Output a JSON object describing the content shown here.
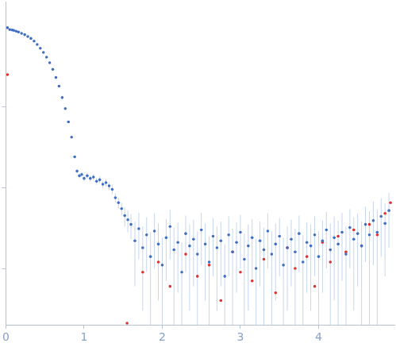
{
  "chart_data": {
    "type": "scatter",
    "xlim": [
      0,
      4.97
    ],
    "xticks": [
      0,
      1,
      2,
      3,
      4
    ],
    "ylim": [
      0.0002,
      2
    ],
    "yticks": [
      0.001,
      0.01,
      0.1
    ],
    "log": "y",
    "grid": false,
    "tick_labels": "x",
    "series": [
      {
        "color": "#3f6fc4",
        "marker": "circle",
        "x": [
          0.02,
          0.05,
          0.08,
          0.1,
          0.13,
          0.16,
          0.2,
          0.24,
          0.28,
          0.32,
          0.36,
          0.4,
          0.44,
          0.48,
          0.52,
          0.56,
          0.6,
          0.64,
          0.68,
          0.72,
          0.76,
          0.8,
          0.84,
          0.88,
          0.91,
          0.94,
          0.97,
          1.0,
          1.04,
          1.08,
          1.12,
          1.16,
          1.2,
          1.24,
          1.28,
          1.32,
          1.36,
          1.4,
          1.44,
          1.48,
          1.52,
          1.56,
          1.6,
          1.65,
          1.7,
          1.75,
          1.8,
          1.85,
          1.9,
          1.95,
          2.0,
          2.05,
          2.1,
          2.15,
          2.2,
          2.25,
          2.3,
          2.35,
          2.4,
          2.45,
          2.5,
          2.55,
          2.6,
          2.65,
          2.7,
          2.75,
          2.8,
          2.85,
          2.9,
          2.95,
          3.0,
          3.05,
          3.1,
          3.15,
          3.2,
          3.25,
          3.3,
          3.35,
          3.4,
          3.45,
          3.5,
          3.55,
          3.6,
          3.65,
          3.7,
          3.75,
          3.8,
          3.85,
          3.9,
          3.95,
          4.0,
          4.05,
          4.1,
          4.15,
          4.2,
          4.25,
          4.3,
          4.35,
          4.4,
          4.45,
          4.5,
          4.55,
          4.6,
          4.65,
          4.7,
          4.75,
          4.8,
          4.85,
          4.9
        ],
        "values": [
          0.95,
          0.9,
          0.89,
          0.88,
          0.86,
          0.84,
          0.81,
          0.78,
          0.74,
          0.7,
          0.65,
          0.59,
          0.53,
          0.47,
          0.41,
          0.35,
          0.29,
          0.23,
          0.18,
          0.13,
          0.095,
          0.065,
          0.042,
          0.024,
          0.016,
          0.014,
          0.0145,
          0.013,
          0.014,
          0.013,
          0.0135,
          0.012,
          0.0125,
          0.011,
          0.0115,
          0.0105,
          0.0095,
          0.0075,
          0.0065,
          0.0055,
          0.0045,
          0.004,
          0.0035,
          0.0022,
          0.0031,
          0.0018,
          0.0026,
          0.0014,
          0.0029,
          0.002,
          0.0011,
          0.0024,
          0.0033,
          0.0017,
          0.0021,
          0.0009,
          0.0027,
          0.0019,
          0.0023,
          0.0015,
          0.003,
          0.002,
          0.0012,
          0.0025,
          0.0018,
          0.0022,
          0.0008,
          0.0026,
          0.0016,
          0.0021,
          0.0028,
          0.0013,
          0.0019,
          0.0024,
          0.001,
          0.0022,
          0.0017,
          0.0029,
          0.0015,
          0.002,
          0.0025,
          0.0011,
          0.0018,
          0.0023,
          0.0016,
          0.0027,
          0.0012,
          0.0021,
          0.0019,
          0.0026,
          0.0014,
          0.0022,
          0.003,
          0.0017,
          0.0024,
          0.002,
          0.0028,
          0.0015,
          0.0032,
          0.0023,
          0.0027,
          0.0019,
          0.0035,
          0.0026,
          0.0039,
          0.0028,
          0.0044,
          0.0036,
          0.0052
        ],
        "errors": [
          0.02,
          0.01,
          0.005,
          0.005,
          0.005,
          0.005,
          0.005,
          0.005,
          0.005,
          0.005,
          0.005,
          0.005,
          0.005,
          0.004,
          0.004,
          0.004,
          0.003,
          0.003,
          0.002,
          0.002,
          0.002,
          0.001,
          0.001,
          0.001,
          0.001,
          0.001,
          0.001,
          0.001,
          0.0012,
          0.0012,
          0.0012,
          0.0012,
          0.0012,
          0.0012,
          0.0012,
          0.0012,
          0.0012,
          0.001,
          0.001,
          0.001,
          0.0012,
          0.0012,
          0.0012,
          0.0016,
          0.0018,
          0.0015,
          0.0017,
          0.0014,
          0.0019,
          0.0016,
          0.0013,
          0.0017,
          0.002,
          0.0015,
          0.0016,
          0.0012,
          0.0018,
          0.0016,
          0.0017,
          0.0014,
          0.0019,
          0.0016,
          0.0013,
          0.0017,
          0.0015,
          0.0016,
          0.0012,
          0.0018,
          0.0015,
          0.0016,
          0.0018,
          0.0014,
          0.0016,
          0.0017,
          0.0013,
          0.0016,
          0.0015,
          0.0019,
          0.0014,
          0.0016,
          0.0017,
          0.0013,
          0.0015,
          0.0017,
          0.0015,
          0.0018,
          0.0014,
          0.0016,
          0.0016,
          0.0018,
          0.0015,
          0.0017,
          0.002,
          0.0019,
          0.002,
          0.0019,
          0.0021,
          0.0018,
          0.0022,
          0.002,
          0.0021,
          0.0019,
          0.0023,
          0.0025,
          0.0028,
          0.0026,
          0.003,
          0.0028,
          0.0034
        ]
      },
      {
        "color": "#e03030",
        "marker": "circle",
        "x": [
          0.02,
          1.55,
          1.75,
          1.95,
          2.1,
          2.3,
          2.45,
          2.6,
          2.75,
          2.9,
          3.0,
          3.15,
          3.3,
          3.45,
          3.6,
          3.7,
          3.85,
          3.95,
          4.05,
          4.15,
          4.25,
          4.35,
          4.45,
          4.55,
          4.65,
          4.75,
          4.85,
          4.92
        ],
        "values": [
          0.25,
          0.00021,
          0.0009,
          0.0012,
          0.0006,
          0.0015,
          0.0008,
          0.0011,
          0.0004,
          0.0016,
          0.0009,
          0.0007,
          0.0013,
          0.0005,
          0.0018,
          0.001,
          0.0014,
          0.0006,
          0.0021,
          0.0012,
          0.0025,
          0.0016,
          0.003,
          0.0019,
          0.0035,
          0.0026,
          0.0048,
          0.0065
        ]
      }
    ]
  }
}
